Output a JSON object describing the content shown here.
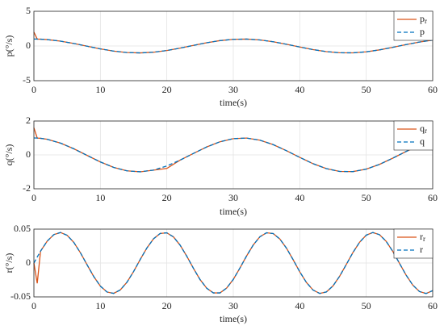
{
  "chart_data": [
    {
      "type": "line",
      "ylabel": "p(°/s)",
      "xlabel": "time(s)",
      "x": [
        0,
        0.5,
        1,
        2,
        4,
        6,
        8,
        10,
        12,
        14,
        16,
        18,
        20,
        22,
        24,
        26,
        28,
        30,
        32,
        34,
        36,
        38,
        40,
        42,
        44,
        46,
        48,
        50,
        52,
        54,
        56,
        58,
        60
      ],
      "series": [
        {
          "name": "pr",
          "color": "#d95319",
          "dash": false,
          "values": [
            2,
            0.995,
            0.98,
            0.921,
            0.697,
            0.362,
            -0.029,
            -0.416,
            -0.737,
            -0.942,
            -0.998,
            -0.897,
            -0.654,
            -0.307,
            0.087,
            0.469,
            0.776,
            0.96,
            0.993,
            0.869,
            0.608,
            0.247,
            -0.146,
            -0.519,
            -0.811,
            -0.975,
            -0.985,
            -0.839,
            -0.56,
            -0.19,
            0.202,
            0.568,
            0.844
          ]
        },
        {
          "name": "p",
          "color": "#0072bd",
          "dash": true,
          "values": [
            1,
            0.995,
            0.98,
            0.921,
            0.697,
            0.362,
            -0.029,
            -0.416,
            -0.737,
            -0.942,
            -0.998,
            -0.897,
            -0.654,
            -0.307,
            0.087,
            0.469,
            0.776,
            0.96,
            0.993,
            0.869,
            0.608,
            0.247,
            -0.146,
            -0.519,
            -0.811,
            -0.975,
            -0.985,
            -0.839,
            -0.56,
            -0.19,
            0.202,
            0.568,
            0.844
          ]
        }
      ],
      "xlim": [
        0,
        60
      ],
      "xticks": [
        0,
        10,
        20,
        30,
        40,
        50,
        60
      ],
      "ylim": [
        -5,
        5
      ],
      "yticks": [
        -5,
        0,
        5
      ],
      "grid": true,
      "legend": "upper right"
    },
    {
      "type": "line",
      "ylabel": "q(°/s)",
      "xlabel": "time(s)",
      "x": [
        0,
        0.5,
        1,
        2,
        4,
        6,
        8,
        10,
        12,
        14,
        16,
        18,
        20,
        22,
        24,
        26,
        28,
        30,
        32,
        34,
        36,
        38,
        40,
        42,
        44,
        46,
        48,
        50,
        52,
        54,
        56,
        58,
        60
      ],
      "series": [
        {
          "name": "qr",
          "color": "#d95319",
          "dash": false,
          "values": [
            1.6,
            0.995,
            0.98,
            0.921,
            0.697,
            0.362,
            -0.029,
            -0.416,
            -0.737,
            -0.942,
            -0.998,
            -0.897,
            -0.8,
            -0.307,
            0.087,
            0.469,
            0.776,
            0.96,
            0.993,
            0.869,
            0.608,
            0.247,
            -0.146,
            -0.519,
            -0.811,
            -0.975,
            -0.985,
            -0.839,
            -0.56,
            -0.19,
            0.202,
            0.568,
            0.844
          ]
        },
        {
          "name": "q",
          "color": "#0072bd",
          "dash": true,
          "values": [
            1,
            0.995,
            0.98,
            0.921,
            0.697,
            0.362,
            -0.029,
            -0.416,
            -0.737,
            -0.942,
            -0.998,
            -0.897,
            -0.654,
            -0.307,
            0.087,
            0.469,
            0.776,
            0.96,
            0.993,
            0.869,
            0.608,
            0.247,
            -0.146,
            -0.519,
            -0.811,
            -0.975,
            -0.985,
            -0.839,
            -0.56,
            -0.19,
            0.202,
            0.568,
            0.844
          ]
        }
      ],
      "xlim": [
        0,
        60
      ],
      "xticks": [
        0,
        10,
        20,
        30,
        40,
        50,
        60
      ],
      "ylim": [
        -2,
        2
      ],
      "yticks": [
        -2,
        0,
        2
      ],
      "grid": true,
      "legend": "upper right"
    },
    {
      "type": "line",
      "ylabel": "r(°/s)",
      "xlabel": "time(s)",
      "x": [
        0,
        0.5,
        1,
        2,
        3,
        4,
        5,
        6,
        7,
        8,
        9,
        10,
        11,
        12,
        13,
        14,
        15,
        16,
        17,
        18,
        19,
        20,
        21,
        22,
        23,
        24,
        25,
        26,
        27,
        28,
        29,
        30,
        31,
        32,
        33,
        34,
        35,
        36,
        37,
        38,
        39,
        40,
        41,
        42,
        43,
        44,
        45,
        46,
        47,
        48,
        49,
        50,
        51,
        52,
        53,
        54,
        55,
        56,
        57,
        58,
        59,
        60
      ],
      "series": [
        {
          "name": "rr",
          "color": "#d95319",
          "dash": false,
          "values": [
            0,
            -0.03,
            0.0175,
            0.0323,
            0.0419,
            0.045,
            0.0409,
            0.0304,
            0.0151,
            -0.0026,
            -0.0199,
            -0.0341,
            -0.0428,
            -0.0448,
            -0.0397,
            -0.0284,
            -0.0126,
            0.0053,
            0.0222,
            0.0357,
            0.0436,
            0.0445,
            0.0385,
            0.0263,
            0.01,
            -0.0078,
            -0.0245,
            -0.0372,
            -0.0441,
            -0.0441,
            -0.037,
            -0.0242,
            -0.0074,
            0.0104,
            0.0266,
            0.0387,
            0.0446,
            0.0434,
            0.0354,
            0.0219,
            0.0049,
            -0.013,
            -0.0287,
            -0.0399,
            -0.0449,
            -0.0427,
            -0.0338,
            -0.0195,
            -0.0022,
            0.0155,
            0.0306,
            0.0411,
            0.045,
            0.0418,
            0.032,
            0.0171,
            -0.0004,
            -0.0179,
            -0.0325,
            -0.0421,
            -0.045,
            -0.0408
          ]
        },
        {
          "name": "r",
          "color": "#0072bd",
          "dash": true,
          "values": [
            0,
            0.0088,
            0.0175,
            0.0323,
            0.0419,
            0.045,
            0.0409,
            0.0304,
            0.0151,
            -0.0026,
            -0.0199,
            -0.0341,
            -0.0428,
            -0.0448,
            -0.0397,
            -0.0284,
            -0.0126,
            0.0053,
            0.0222,
            0.0357,
            0.0436,
            0.0445,
            0.0385,
            0.0263,
            0.01,
            -0.0078,
            -0.0245,
            -0.0372,
            -0.0441,
            -0.0441,
            -0.037,
            -0.0242,
            -0.0074,
            0.0104,
            0.0266,
            0.0387,
            0.0446,
            0.0434,
            0.0354,
            0.0219,
            0.0049,
            -0.013,
            -0.0287,
            -0.0399,
            -0.0449,
            -0.0427,
            -0.0338,
            -0.0195,
            -0.0022,
            0.0155,
            0.0306,
            0.0411,
            0.045,
            0.0418,
            0.032,
            0.0171,
            -0.0004,
            -0.0179,
            -0.0325,
            -0.0421,
            -0.045,
            -0.0408
          ]
        }
      ],
      "xlim": [
        0,
        60
      ],
      "xticks": [
        0,
        10,
        20,
        30,
        40,
        50,
        60
      ],
      "ylim": [
        -0.05,
        0.05
      ],
      "yticks": [
        -0.05,
        0,
        0.05
      ],
      "grid": true,
      "legend": "upper right"
    }
  ]
}
